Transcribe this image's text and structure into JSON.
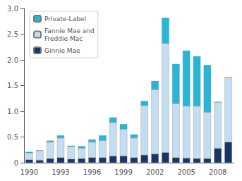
{
  "chart_data": {
    "type": "bar",
    "stacked": true,
    "categories": [
      "1990",
      null,
      null,
      "1993",
      null,
      null,
      "1996",
      null,
      null,
      "1999",
      null,
      null,
      "2002",
      null,
      null,
      "2005",
      null,
      null,
      "2008",
      null
    ],
    "series": [
      {
        "name": "Ginnie Mae",
        "color": "#1a3669",
        "values": [
          0.06,
          0.05,
          0.08,
          0.1,
          0.07,
          0.08,
          0.1,
          0.1,
          0.13,
          0.13,
          0.1,
          0.15,
          0.17,
          0.2,
          0.1,
          0.09,
          0.08,
          0.08,
          0.28,
          0.4
        ]
      },
      {
        "name": "Fannie Mae and\nFreddie Mac",
        "color": "#c5ddf0",
        "values": [
          0.13,
          0.18,
          0.32,
          0.38,
          0.24,
          0.2,
          0.3,
          0.33,
          0.65,
          0.52,
          0.38,
          0.96,
          1.25,
          2.12,
          1.05,
          1.01,
          1.02,
          0.9,
          0.9,
          1.26
        ]
      },
      {
        "name": "Private-Label",
        "color": "#29b5d8",
        "values": [
          0.02,
          0.01,
          0.03,
          0.05,
          0.02,
          0.04,
          0.05,
          0.1,
          0.1,
          0.1,
          0.07,
          0.09,
          0.17,
          0.5,
          0.77,
          1.08,
          0.97,
          0.92,
          0.0,
          0.0
        ]
      }
    ],
    "ylim": [
      0,
      3.0
    ],
    "yticks": [
      0,
      0.5,
      {
        "value": 1.0,
        "label": "1.0"
      },
      {
        "value": 1.5,
        "label": "1.5"
      },
      {
        "value": 2.0,
        "label": "2.0"
      },
      {
        "value": 2.5,
        "label": "2.5"
      },
      {
        "value": 3.0,
        "label": "3.0"
      }
    ],
    "grid": false,
    "legend": "upper left"
  }
}
